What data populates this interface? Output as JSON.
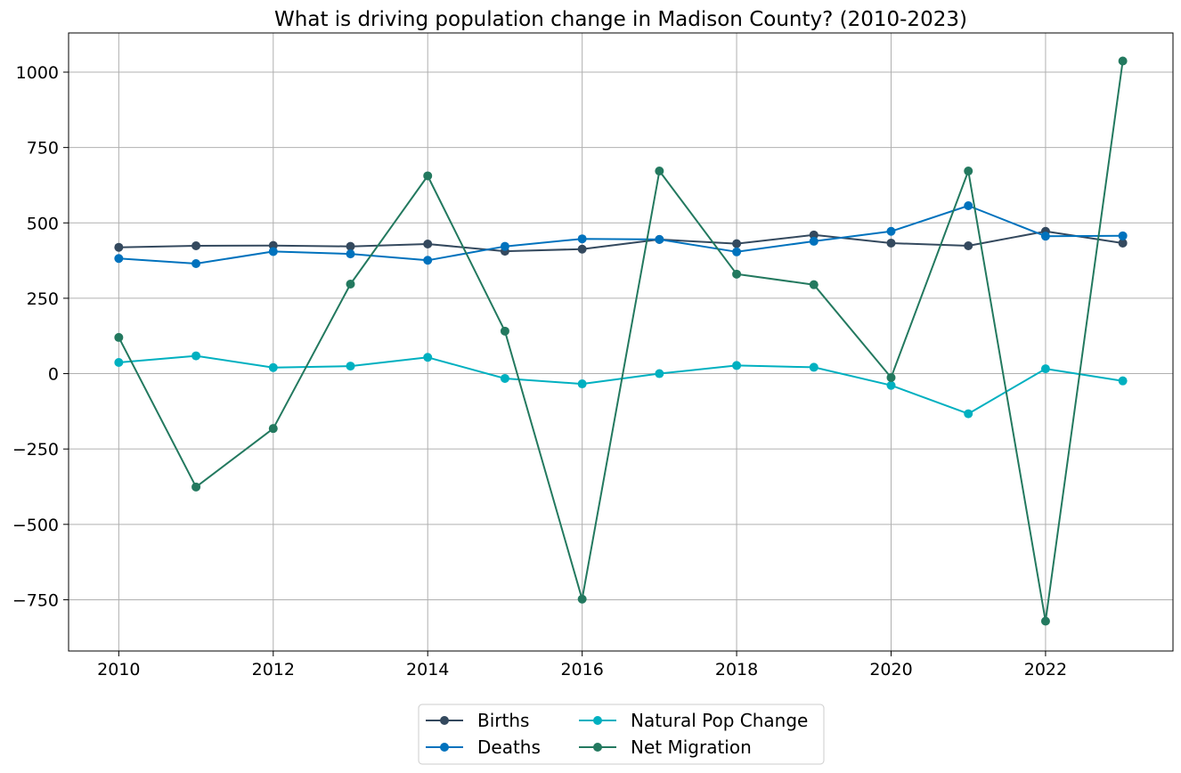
{
  "chart_data": {
    "type": "line",
    "title": "What is driving population change in Madison County? (2010-2023)",
    "xlabel": "",
    "ylabel": "",
    "x": [
      2010,
      2011,
      2012,
      2013,
      2014,
      2015,
      2016,
      2017,
      2018,
      2019,
      2020,
      2021,
      2022,
      2023
    ],
    "xlim": [
      2009.35,
      2023.65
    ],
    "ylim": [
      -920,
      1130
    ],
    "xticks": [
      2010,
      2012,
      2014,
      2016,
      2018,
      2020,
      2022
    ],
    "yticks": [
      -750,
      -500,
      -250,
      0,
      250,
      500,
      750,
      1000
    ],
    "ytick_labels": [
      "−750",
      "−500",
      "−250",
      "0",
      "250",
      "500",
      "750",
      "1000"
    ],
    "grid": true,
    "legend": {
      "position": "bottom-center",
      "columns": 2
    },
    "series": [
      {
        "name": "Births",
        "color": "#34495e",
        "marker": "circle",
        "values": [
          419,
          424,
          425,
          422,
          430,
          406,
          413,
          445,
          431,
          460,
          433,
          424,
          472,
          433
        ]
      },
      {
        "name": "Deaths",
        "color": "#0072bd",
        "marker": "circle",
        "values": [
          382,
          365,
          405,
          397,
          376,
          422,
          447,
          445,
          404,
          439,
          472,
          557,
          456,
          457
        ]
      },
      {
        "name": "Natural Pop Change",
        "color": "#00b0c0",
        "marker": "circle",
        "values": [
          37,
          59,
          20,
          25,
          54,
          -16,
          -34,
          0,
          27,
          21,
          -39,
          -133,
          16,
          -24
        ]
      },
      {
        "name": "Net Migration",
        "color": "#23795f",
        "marker": "circle",
        "values": [
          120,
          -376,
          -182,
          297,
          656,
          141,
          -748,
          672,
          330,
          295,
          -13,
          672,
          -821,
          1037
        ]
      }
    ]
  }
}
